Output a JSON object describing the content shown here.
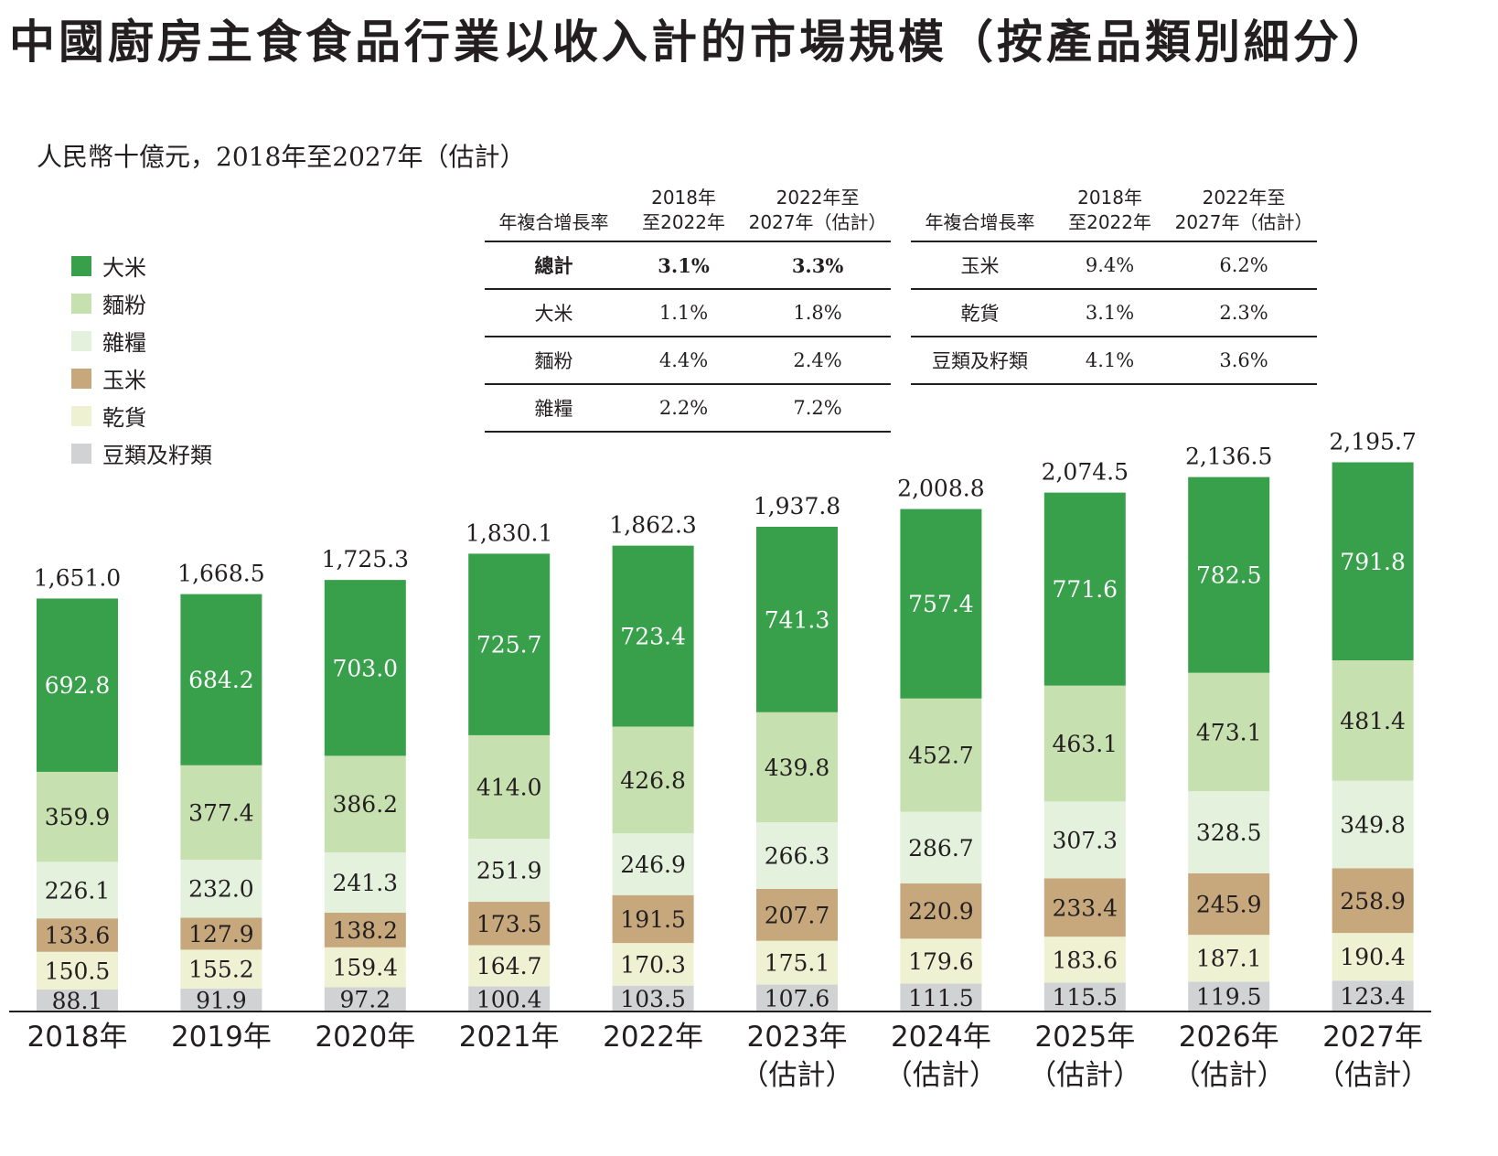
{
  "title": "中國廚房主食食品行業以收入計的市場規模（按產品類別細分）",
  "subtitle": "人民幣十億元，2018年至2027年（估計）",
  "cagr_tables": [
    {
      "header": {
        "label": "年複合增長率",
        "col1": [
          "2018年",
          "至2022年"
        ],
        "col2": [
          "2022年至",
          "2027年（估計）"
        ]
      },
      "rows": [
        {
          "name": "總計",
          "v1": "3.1%",
          "v2": "3.3%",
          "bold": true
        },
        {
          "name": "大米",
          "v1": "1.1%",
          "v2": "1.8%"
        },
        {
          "name": "麵粉",
          "v1": "4.4%",
          "v2": "2.4%"
        },
        {
          "name": "雜糧",
          "v1": "2.2%",
          "v2": "7.2%"
        }
      ]
    },
    {
      "header": {
        "label": "年複合增長率",
        "col1": [
          "2018年",
          "至2022年"
        ],
        "col2": [
          "2022年至",
          "2027年（估計）"
        ]
      },
      "rows": [
        {
          "name": "玉米",
          "v1": "9.4%",
          "v2": "6.2%"
        },
        {
          "name": "乾貨",
          "v1": "3.1%",
          "v2": "2.3%"
        },
        {
          "name": "豆類及籽類",
          "v1": "4.1%",
          "v2": "3.6%"
        }
      ]
    }
  ],
  "chart_data": {
    "type": "bar",
    "stacked": true,
    "title": "中國廚房主食食品行業以收入計的市場規模（按產品類別細分）",
    "ylabel": "人民幣十億元",
    "categories": [
      [
        "2018年"
      ],
      [
        "2019年"
      ],
      [
        "2020年"
      ],
      [
        "2021年"
      ],
      [
        "2022年"
      ],
      [
        "2023年",
        "（估計）"
      ],
      [
        "2024年",
        "（估計）"
      ],
      [
        "2025年",
        "（估計）"
      ],
      [
        "2026年",
        "（估計）"
      ],
      [
        "2027年",
        "（估計）"
      ]
    ],
    "series": [
      {
        "name": "豆類及籽類",
        "color": "#d1d2d4",
        "values": [
          88.1,
          91.9,
          97.2,
          100.4,
          103.5,
          107.6,
          111.5,
          115.5,
          119.5,
          123.4
        ]
      },
      {
        "name": "乾貨",
        "color": "#eff1d3",
        "values": [
          150.5,
          155.2,
          159.4,
          164.7,
          170.3,
          175.1,
          179.6,
          183.6,
          187.1,
          190.4
        ]
      },
      {
        "name": "玉米",
        "color": "#c6a87c",
        "values": [
          133.6,
          127.9,
          138.2,
          173.5,
          191.5,
          207.7,
          220.9,
          233.4,
          245.9,
          258.9
        ]
      },
      {
        "name": "雜糧",
        "color": "#e3f1dd",
        "values": [
          226.1,
          232.0,
          241.3,
          251.9,
          246.9,
          266.3,
          286.7,
          307.3,
          328.5,
          349.8
        ]
      },
      {
        "name": "麵粉",
        "color": "#c7e0b0",
        "values": [
          359.9,
          377.4,
          386.2,
          414.0,
          426.8,
          439.8,
          452.7,
          463.1,
          473.1,
          481.4
        ]
      },
      {
        "name": "大米",
        "color": "#38a04a",
        "values": [
          692.8,
          684.2,
          703.0,
          725.7,
          723.4,
          741.3,
          757.4,
          771.6,
          782.5,
          791.8
        ]
      }
    ],
    "totals": [
      "1,651.0",
      "1,668.5",
      "1,725.3",
      "1,830.1",
      "1,862.3",
      "1,937.8",
      "2,008.8",
      "2,074.5",
      "2,136.5",
      "2,195.7"
    ],
    "legend": [
      "大米",
      "麵粉",
      "雜糧",
      "玉米",
      "乾貨",
      "豆類及籽類"
    ],
    "legend_position": "top-left"
  }
}
